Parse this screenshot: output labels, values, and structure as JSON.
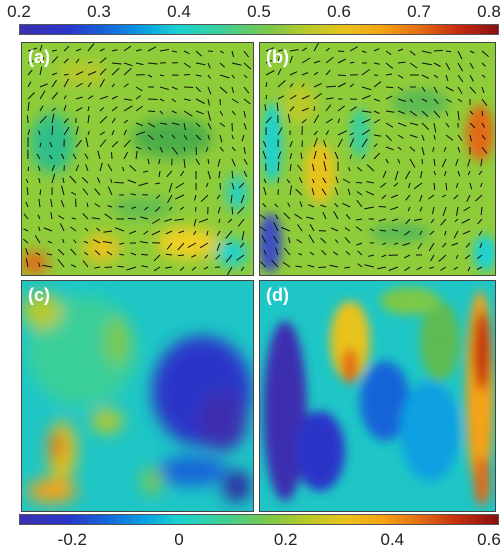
{
  "chart_data": [
    {
      "type": "heatmap",
      "colorbar": {
        "position": "top",
        "ticks": [
          "0.2",
          "0.3",
          "0.4",
          "0.5",
          "0.6",
          "0.7",
          "0.8"
        ],
        "range": [
          0.2,
          0.8
        ]
      },
      "panels": [
        {
          "label": "(a)",
          "overlay": "velocity vectors",
          "dominant_value": 0.5
        },
        {
          "label": "(b)",
          "overlay": "velocity vectors",
          "dominant_value": 0.5
        }
      ]
    },
    {
      "type": "heatmap",
      "colorbar": {
        "position": "bottom",
        "ticks": [
          "-0.2",
          "0",
          "0.2",
          "0.4",
          "0.6"
        ],
        "range": [
          -0.3,
          0.6
        ]
      },
      "panels": [
        {
          "label": "(c)",
          "dominant_value": 0.05
        },
        {
          "label": "(d)",
          "dominant_value": 0.0
        }
      ]
    }
  ],
  "colors": {
    "low": "#2a2a9e",
    "mid_low": "#1ad1d0",
    "mid": "#7cc84a",
    "mid_high": "#e8c21c",
    "high": "#c42a10"
  }
}
